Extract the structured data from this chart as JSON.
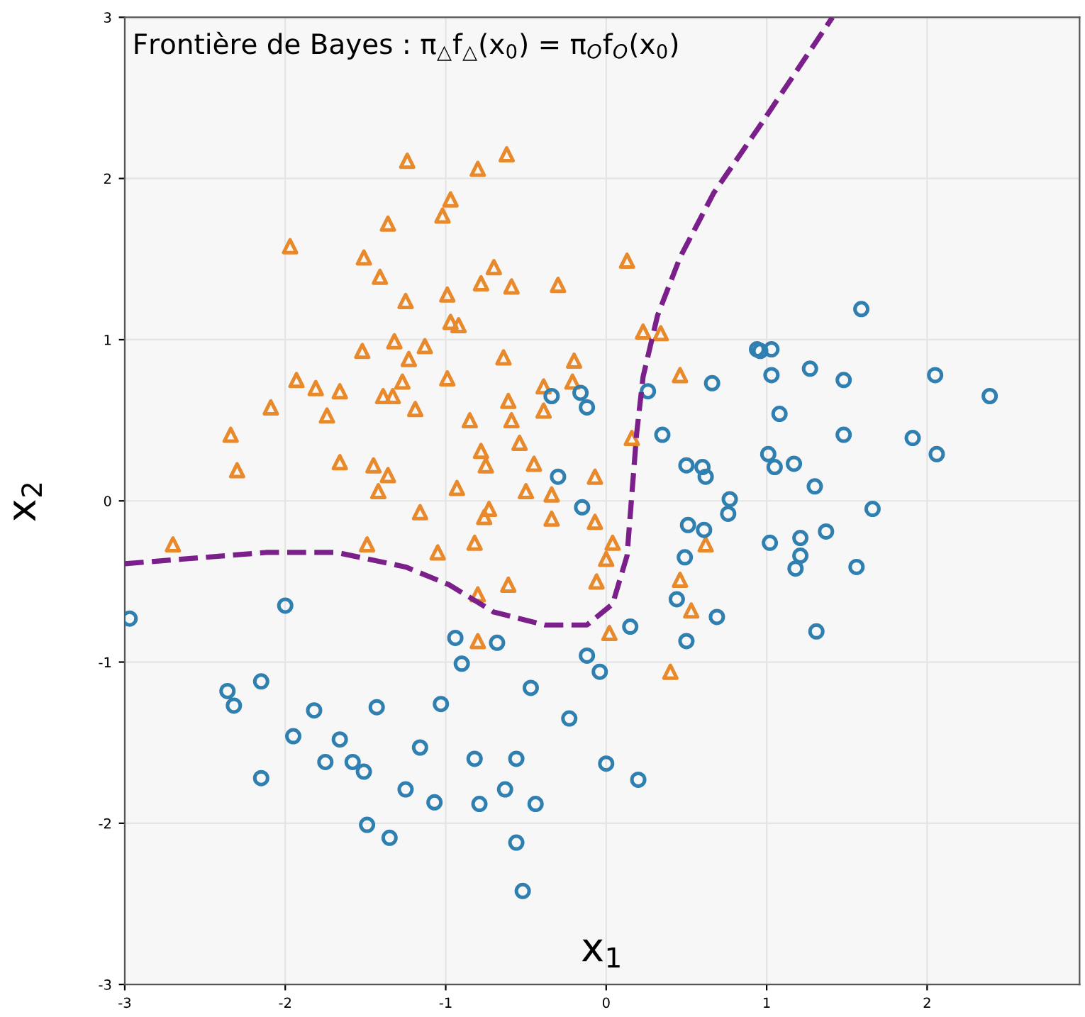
{
  "chart_data": {
    "type": "scatter",
    "title": "Frontière de Bayes : π$_{△}$f$_{△}$(x$_{0}$) = π$_{O}$f$_{O}$(x$_{0}$)",
    "xlabel": "x$_{1}$",
    "ylabel": "x$_{2}$",
    "xlim": [
      -3,
      2.95
    ],
    "ylim": [
      -3,
      3
    ],
    "xticks": [
      -3,
      -2,
      -1,
      0,
      1,
      2
    ],
    "yticks": [
      -3,
      -2,
      -1,
      0,
      1,
      2,
      3
    ],
    "grid": true,
    "series": [
      {
        "type": "scatter",
        "marker": "triangle",
        "color": "#e8892b",
        "x": [
          -1.24,
          -0.62,
          -0.8,
          -0.97,
          -1.02,
          -1.36,
          -1.97,
          -1.51,
          -1.41,
          -1.25,
          -0.99,
          -0.97,
          -0.92,
          -1.32,
          -1.13,
          -1.52,
          -1.23,
          -1.27,
          -0.99,
          -1.93,
          -1.81,
          -1.66,
          -1.39,
          -1.33,
          -1.19,
          -2.09,
          -1.74,
          -2.34,
          -2.3,
          -1.66,
          -1.45,
          -1.36,
          -1.42,
          -1.16,
          -2.7,
          -1.49,
          -0.7,
          -0.78,
          -0.59,
          -0.3,
          0.13,
          0.23,
          0.34,
          0.46,
          -0.2,
          -0.64,
          -0.21,
          -0.39,
          -0.61,
          -0.39,
          -0.85,
          -0.59,
          -0.54,
          -0.78,
          -0.75,
          -0.45,
          0.16,
          -0.93,
          -0.5,
          -0.34,
          -0.07,
          -0.73,
          -0.76,
          -0.34,
          -0.07,
          -0.82,
          0.04,
          0.62,
          0.0,
          -0.61,
          -0.8,
          -0.06,
          0.46,
          0.53,
          0.02,
          -0.8,
          0.4,
          -1.05
        ],
        "values": [
          2.11,
          2.15,
          2.06,
          1.87,
          1.77,
          1.72,
          1.58,
          1.51,
          1.39,
          1.24,
          1.28,
          1.11,
          1.09,
          0.99,
          0.96,
          0.93,
          0.88,
          0.74,
          0.76,
          0.75,
          0.7,
          0.68,
          0.65,
          0.65,
          0.57,
          0.58,
          0.53,
          0.41,
          0.19,
          0.24,
          0.22,
          0.16,
          0.06,
          -0.07,
          -0.27,
          -0.27,
          1.45,
          1.35,
          1.33,
          1.34,
          1.49,
          1.05,
          1.04,
          0.78,
          0.87,
          0.89,
          0.74,
          0.71,
          0.62,
          0.56,
          0.5,
          0.5,
          0.36,
          0.31,
          0.22,
          0.23,
          0.39,
          0.08,
          0.06,
          0.04,
          0.15,
          -0.05,
          -0.1,
          -0.11,
          -0.13,
          -0.26,
          -0.26,
          -0.27,
          -0.36,
          -0.52,
          -0.58,
          -0.5,
          -0.49,
          -0.68,
          -0.82,
          -0.87,
          -1.06,
          -0.32
        ]
      },
      {
        "type": "scatter",
        "marker": "circle",
        "color": "#2f7fb0",
        "x": [
          0.94,
          0.66,
          0.26,
          -0.34,
          -0.16,
          -0.12,
          0.35,
          0.5,
          0.6,
          0.62,
          0.77,
          0.76,
          0.51,
          0.61,
          -0.3,
          -0.15,
          1.59,
          0.96,
          1.03,
          1.03,
          1.27,
          1.48,
          2.05,
          2.39,
          1.08,
          1.48,
          1.91,
          2.06,
          1.01,
          1.05,
          1.17,
          1.3,
          1.66,
          1.02,
          1.21,
          1.37,
          1.21,
          1.18,
          1.56,
          1.31,
          -2.97,
          -2.0,
          -2.15,
          -2.36,
          -2.32,
          -1.82,
          -1.43,
          -1.03,
          -1.95,
          -1.66,
          -1.16,
          -1.75,
          -1.58,
          -1.51,
          -2.15,
          -1.25,
          -1.07,
          -1.49,
          -1.35,
          0.49,
          0.44,
          0.69,
          0.15,
          0.5,
          -0.94,
          -0.68,
          -0.12,
          -0.04,
          -0.9,
          -0.47,
          -0.23,
          -0.82,
          -0.56,
          0.0,
          0.2,
          -0.63,
          -0.79,
          -0.44,
          -0.56,
          -0.52
        ],
        "values": [
          0.94,
          0.73,
          0.68,
          0.65,
          0.67,
          0.58,
          0.41,
          0.22,
          0.21,
          0.15,
          0.01,
          -0.08,
          -0.15,
          -0.18,
          0.15,
          -0.04,
          1.19,
          0.93,
          0.94,
          0.78,
          0.82,
          0.75,
          0.78,
          0.65,
          0.54,
          0.41,
          0.39,
          0.29,
          0.29,
          0.21,
          0.23,
          0.09,
          -0.05,
          -0.26,
          -0.23,
          -0.19,
          -0.34,
          -0.42,
          -0.41,
          -0.81,
          -0.73,
          -0.65,
          -1.12,
          -1.18,
          -1.27,
          -1.3,
          -1.28,
          -1.26,
          -1.46,
          -1.48,
          -1.53,
          -1.62,
          -1.62,
          -1.68,
          -1.72,
          -1.79,
          -1.87,
          -2.01,
          -2.09,
          -0.35,
          -0.61,
          -0.72,
          -0.78,
          -0.87,
          -0.85,
          -0.88,
          -0.96,
          -1.06,
          -1.01,
          -1.16,
          -1.35,
          -1.6,
          -1.6,
          -1.63,
          -1.73,
          -1.79,
          -1.88,
          -1.88,
          -2.12,
          -2.42
        ]
      },
      {
        "type": "line",
        "line_style": "dashed",
        "marker": "none",
        "color": "#7b1f8a",
        "x": [
          -3.0,
          -2.12,
          -1.68,
          -1.25,
          -0.98,
          -0.7,
          -0.38,
          -0.12,
          0.04,
          0.13,
          0.19,
          0.23,
          0.32,
          0.46,
          0.67,
          0.96,
          1.41
        ],
        "values": [
          -0.39,
          -0.32,
          -0.32,
          -0.41,
          -0.52,
          -0.69,
          -0.77,
          -0.77,
          -0.64,
          -0.34,
          0.42,
          0.77,
          1.15,
          1.51,
          1.91,
          2.33,
          3.0
        ]
      }
    ]
  }
}
